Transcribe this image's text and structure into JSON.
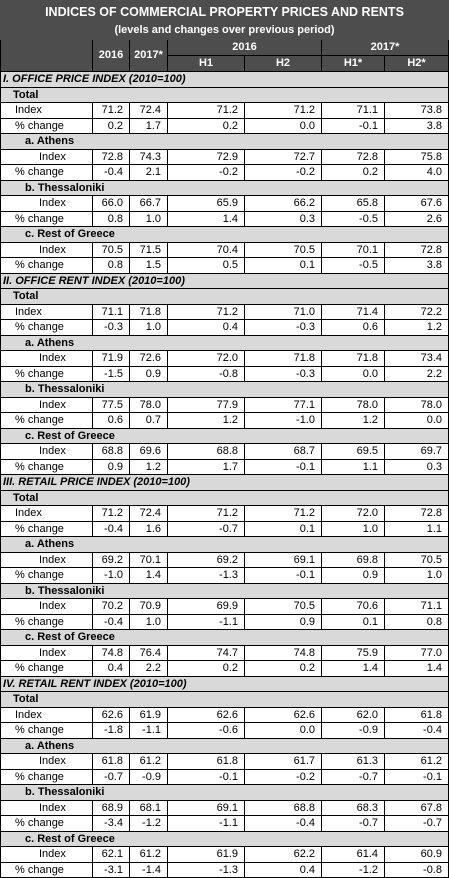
{
  "header": {
    "title": "INDICES OF COMMERCIAL PROPERTY PRICES AND RENTS",
    "subtitle": "(levels and changes over previous period)",
    "columns_top": [
      "2016",
      "2017*",
      "2016",
      "2017*"
    ],
    "columns_sub": [
      "H1",
      "H2",
      "H1*",
      "H2*"
    ]
  },
  "sections": [
    {
      "title": "I. OFFICE PRICE INDEX (2010=100)",
      "groups": [
        {
          "label": "Total",
          "rows": [
            {
              "label": "Index",
              "values": [
                "71.2",
                "72.4",
                "71.2",
                "71.2",
                "71.1",
                "73.8"
              ]
            },
            {
              "label": "% change",
              "values": [
                "0.2",
                "1.7",
                "0.2",
                "0.0",
                "-0.1",
                "3.8"
              ]
            }
          ]
        },
        {
          "label": "a. Athens",
          "rows": [
            {
              "label": "Index",
              "values": [
                "72.8",
                "74.3",
                "72.9",
                "72.7",
                "72.8",
                "75.8"
              ]
            },
            {
              "label": "% change",
              "values": [
                "-0.4",
                "2.1",
                "-0.2",
                "-0.2",
                "0.2",
                "4.0"
              ]
            }
          ]
        },
        {
          "label": "b. Thessaloniki",
          "rows": [
            {
              "label": "Index",
              "values": [
                "66.0",
                "66.7",
                "65.9",
                "66.2",
                "65.8",
                "67.6"
              ]
            },
            {
              "label": "% change",
              "values": [
                "0.8",
                "1.0",
                "1.4",
                "0.3",
                "-0.5",
                "2.6"
              ]
            }
          ]
        },
        {
          "label": "c. Rest of Greece",
          "rows": [
            {
              "label": "Index",
              "values": [
                "70.5",
                "71.5",
                "70.4",
                "70.5",
                "70.1",
                "72.8"
              ]
            },
            {
              "label": "% change",
              "values": [
                "0.8",
                "1.5",
                "0.5",
                "0.1",
                "-0.5",
                "3.8"
              ]
            }
          ]
        }
      ]
    },
    {
      "title": "II. OFFICE RENT INDEX (2010=100)",
      "groups": [
        {
          "label": "Total",
          "rows": [
            {
              "label": "Index",
              "values": [
                "71.1",
                "71.8",
                "71.2",
                "71.0",
                "71.4",
                "72.2"
              ]
            },
            {
              "label": "% change",
              "values": [
                "-0.3",
                "1.0",
                "0.4",
                "-0.3",
                "0.6",
                "1.2"
              ]
            }
          ]
        },
        {
          "label": "a. Athens",
          "rows": [
            {
              "label": "Index",
              "values": [
                "71.9",
                "72.6",
                "72.0",
                "71.8",
                "71.8",
                "73.4"
              ]
            },
            {
              "label": "% change",
              "values": [
                "-1.5",
                "0.9",
                "-0.8",
                "-0.3",
                "0.0",
                "2.2"
              ]
            }
          ]
        },
        {
          "label": "b. Thessaloniki",
          "rows": [
            {
              "label": "Index",
              "values": [
                "77.5",
                "78.0",
                "77.9",
                "77.1",
                "78.0",
                "78.0"
              ]
            },
            {
              "label": "% change",
              "values": [
                "0.6",
                "0.7",
                "1.2",
                "-1.0",
                "1.2",
                "0.0"
              ]
            }
          ]
        },
        {
          "label": "c. Rest of Greece",
          "rows": [
            {
              "label": "Index",
              "values": [
                "68.8",
                "69.6",
                "68.8",
                "68.7",
                "69.5",
                "69.7"
              ]
            },
            {
              "label": "% change",
              "values": [
                "0.9",
                "1.2",
                "1.7",
                "-0.1",
                "1.1",
                "0.3"
              ]
            }
          ]
        }
      ]
    },
    {
      "title": "III. RETAIL PRICE INDEX (2010=100)",
      "groups": [
        {
          "label": "Total",
          "rows": [
            {
              "label": "Index",
              "values": [
                "71.2",
                "72.4",
                "71.2",
                "71.2",
                "72.0",
                "72.8"
              ]
            },
            {
              "label": "% change",
              "values": [
                "-0.4",
                "1.6",
                "-0.7",
                "0.1",
                "1.0",
                "1.1"
              ]
            }
          ]
        },
        {
          "label": "a. Athens",
          "rows": [
            {
              "label": "Index",
              "values": [
                "69.2",
                "70.1",
                "69.2",
                "69.1",
                "69.8",
                "70.5"
              ]
            },
            {
              "label": "% change",
              "values": [
                "-1.0",
                "1.4",
                "-1.3",
                "-0.1",
                "0.9",
                "1.0"
              ]
            }
          ]
        },
        {
          "label": "b. Thessaloniki",
          "rows": [
            {
              "label": "Index",
              "values": [
                "70.2",
                "70.9",
                "69.9",
                "70.5",
                "70.6",
                "71.1"
              ]
            },
            {
              "label": "% change",
              "values": [
                "-0.4",
                "1.0",
                "-1.1",
                "0.9",
                "0.1",
                "0.8"
              ]
            }
          ]
        },
        {
          "label": "c. Rest of Greece",
          "rows": [
            {
              "label": "Index",
              "values": [
                "74.8",
                "76.4",
                "74.7",
                "74.8",
                "75.9",
                "77.0"
              ]
            },
            {
              "label": "% change",
              "values": [
                "0.4",
                "2.2",
                "0.2",
                "0.2",
                "1.4",
                "1.4"
              ]
            }
          ]
        }
      ]
    },
    {
      "title": "IV. RETAIL RENT INDEX (2010=100)",
      "groups": [
        {
          "label": "Total",
          "rows": [
            {
              "label": "Index",
              "values": [
                "62.6",
                "61.9",
                "62.6",
                "62.6",
                "62.0",
                "61.8"
              ]
            },
            {
              "label": "% change",
              "values": [
                "-1.8",
                "-1.1",
                "-0.6",
                "0.0",
                "-0.9",
                "-0.4"
              ]
            }
          ]
        },
        {
          "label": "a. Athens",
          "rows": [
            {
              "label": "Index",
              "values": [
                "61.8",
                "61.2",
                "61.8",
                "61.7",
                "61.3",
                "61.2"
              ]
            },
            {
              "label": "% change",
              "values": [
                "-0.7",
                "-0.9",
                "-0.1",
                "-0.2",
                "-0.7",
                "-0.1"
              ]
            }
          ]
        },
        {
          "label": "b. Thessaloniki",
          "rows": [
            {
              "label": "Index",
              "values": [
                "68.9",
                "68.1",
                "69.1",
                "68.8",
                "68.3",
                "67.8"
              ]
            },
            {
              "label": "% change",
              "values": [
                "-3.4",
                "-1.2",
                "-1.1",
                "-0.4",
                "-0.7",
                "-0.7"
              ]
            }
          ]
        },
        {
          "label": "c. Rest of Greece",
          "rows": [
            {
              "label": "Index",
              "values": [
                "62.1",
                "61.2",
                "61.9",
                "62.2",
                "61.4",
                "60.9"
              ]
            },
            {
              "label": "% change",
              "values": [
                "-3.1",
                "-1.4",
                "-1.3",
                "0.4",
                "-1.2",
                "-0.8"
              ]
            }
          ]
        }
      ]
    }
  ]
}
